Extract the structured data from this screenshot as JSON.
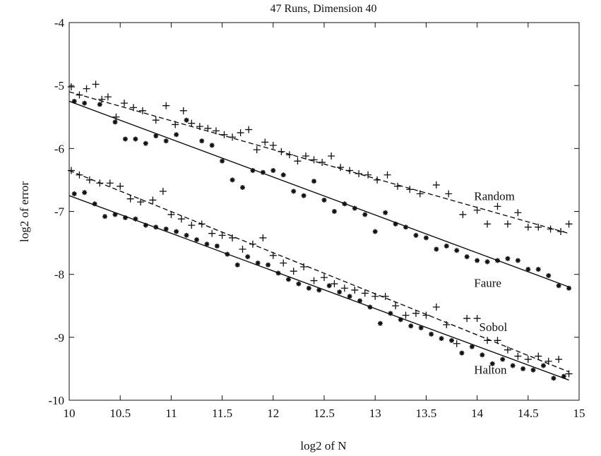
{
  "chart_data": {
    "type": "scatter",
    "title": "47 Runs, Dimension 40",
    "xlabel": "log2 of N",
    "ylabel": "log2 of error",
    "xlim": [
      10,
      15
    ],
    "ylim": [
      -10,
      -4
    ],
    "x_ticks": [
      10,
      10.5,
      11,
      11.5,
      12,
      12.5,
      13,
      13.5,
      14,
      14.5,
      15
    ],
    "x_tick_labels": [
      "10",
      "10.5",
      "11",
      "11.5",
      "12",
      "12.5",
      "13",
      "13.5",
      "14",
      "14.5",
      "15"
    ],
    "y_ticks": [
      -10,
      -9,
      -8,
      -7,
      -6,
      -5,
      -4
    ],
    "y_tick_labels": [
      "-10",
      "-9",
      "-8",
      "-7",
      "-6",
      "-5",
      "-4"
    ],
    "grid": false,
    "series": [
      {
        "name": "Random",
        "marker": "plus",
        "fit_line": "dashed",
        "fit": {
          "x": [
            10.0,
            14.9
          ],
          "y": [
            -5.1,
            -7.35
          ]
        },
        "points": [
          [
            10.02,
            -5.02
          ],
          [
            10.1,
            -5.15
          ],
          [
            10.17,
            -5.05
          ],
          [
            10.26,
            -4.98
          ],
          [
            10.32,
            -5.22
          ],
          [
            10.38,
            -5.18
          ],
          [
            10.46,
            -5.5
          ],
          [
            10.54,
            -5.28
          ],
          [
            10.63,
            -5.35
          ],
          [
            10.72,
            -5.4
          ],
          [
            10.85,
            -5.55
          ],
          [
            10.95,
            -5.32
          ],
          [
            11.04,
            -5.62
          ],
          [
            11.12,
            -5.4
          ],
          [
            11.2,
            -5.6
          ],
          [
            11.28,
            -5.65
          ],
          [
            11.36,
            -5.68
          ],
          [
            11.44,
            -5.72
          ],
          [
            11.52,
            -5.78
          ],
          [
            11.6,
            -5.82
          ],
          [
            11.68,
            -5.75
          ],
          [
            11.76,
            -5.7
          ],
          [
            11.84,
            -6.02
          ],
          [
            11.92,
            -5.9
          ],
          [
            12.0,
            -5.95
          ],
          [
            12.08,
            -6.05
          ],
          [
            12.16,
            -6.1
          ],
          [
            12.24,
            -6.2
          ],
          [
            12.32,
            -6.12
          ],
          [
            12.4,
            -6.18
          ],
          [
            12.48,
            -6.22
          ],
          [
            12.57,
            -6.12
          ],
          [
            12.66,
            -6.3
          ],
          [
            12.75,
            -6.35
          ],
          [
            12.84,
            -6.4
          ],
          [
            12.93,
            -6.42
          ],
          [
            13.02,
            -6.5
          ],
          [
            13.12,
            -6.42
          ],
          [
            13.22,
            -6.6
          ],
          [
            13.34,
            -6.65
          ],
          [
            13.44,
            -6.72
          ],
          [
            13.6,
            -6.58
          ],
          [
            13.72,
            -6.72
          ],
          [
            13.86,
            -7.05
          ],
          [
            14.0,
            -6.98
          ],
          [
            14.1,
            -7.2
          ],
          [
            14.2,
            -6.92
          ],
          [
            14.3,
            -7.2
          ],
          [
            14.4,
            -7.02
          ],
          [
            14.5,
            -7.25
          ],
          [
            14.6,
            -7.25
          ],
          [
            14.72,
            -7.28
          ],
          [
            14.82,
            -7.32
          ],
          [
            14.9,
            -7.2
          ]
        ]
      },
      {
        "name": "Faure",
        "marker": "star",
        "fit_line": "solid",
        "fit": {
          "x": [
            10.0,
            14.9
          ],
          "y": [
            -5.25,
            -8.2
          ]
        },
        "points": [
          [
            10.05,
            -5.25
          ],
          [
            10.15,
            -5.28
          ],
          [
            10.3,
            -5.3
          ],
          [
            10.45,
            -5.58
          ],
          [
            10.55,
            -5.85
          ],
          [
            10.65,
            -5.85
          ],
          [
            10.75,
            -5.92
          ],
          [
            10.85,
            -5.8
          ],
          [
            10.95,
            -5.88
          ],
          [
            11.05,
            -5.78
          ],
          [
            11.15,
            -5.55
          ],
          [
            11.3,
            -5.88
          ],
          [
            11.4,
            -5.95
          ],
          [
            11.5,
            -6.2
          ],
          [
            11.6,
            -6.5
          ],
          [
            11.7,
            -6.62
          ],
          [
            11.8,
            -6.35
          ],
          [
            11.9,
            -6.38
          ],
          [
            12.0,
            -6.35
          ],
          [
            12.1,
            -6.42
          ],
          [
            12.2,
            -6.68
          ],
          [
            12.3,
            -6.75
          ],
          [
            12.4,
            -6.52
          ],
          [
            12.5,
            -6.82
          ],
          [
            12.6,
            -7.0
          ],
          [
            12.7,
            -6.88
          ],
          [
            12.8,
            -6.95
          ],
          [
            12.9,
            -7.05
          ],
          [
            13.0,
            -7.32
          ],
          [
            13.1,
            -7.02
          ],
          [
            13.2,
            -7.2
          ],
          [
            13.3,
            -7.25
          ],
          [
            13.4,
            -7.38
          ],
          [
            13.5,
            -7.42
          ],
          [
            13.6,
            -7.6
          ],
          [
            13.7,
            -7.55
          ],
          [
            13.8,
            -7.62
          ],
          [
            13.9,
            -7.72
          ],
          [
            14.0,
            -7.78
          ],
          [
            14.1,
            -7.8
          ],
          [
            14.2,
            -7.78
          ],
          [
            14.3,
            -7.75
          ],
          [
            14.4,
            -7.78
          ],
          [
            14.5,
            -7.92
          ],
          [
            14.6,
            -7.92
          ],
          [
            14.7,
            -8.02
          ],
          [
            14.8,
            -8.18
          ],
          [
            14.9,
            -8.22
          ]
        ]
      },
      {
        "name": "Sobol",
        "marker": "plus",
        "fit_line": "dashed",
        "fit": {
          "x": [
            10.0,
            14.9
          ],
          "y": [
            -6.35,
            -9.55
          ]
        },
        "points": [
          [
            10.02,
            -6.35
          ],
          [
            10.1,
            -6.42
          ],
          [
            10.2,
            -6.5
          ],
          [
            10.3,
            -6.55
          ],
          [
            10.4,
            -6.55
          ],
          [
            10.5,
            -6.6
          ],
          [
            10.6,
            -6.8
          ],
          [
            10.7,
            -6.85
          ],
          [
            10.82,
            -6.82
          ],
          [
            10.92,
            -6.68
          ],
          [
            11.0,
            -7.05
          ],
          [
            11.1,
            -7.12
          ],
          [
            11.2,
            -7.22
          ],
          [
            11.3,
            -7.2
          ],
          [
            11.4,
            -7.35
          ],
          [
            11.5,
            -7.38
          ],
          [
            11.6,
            -7.42
          ],
          [
            11.7,
            -7.6
          ],
          [
            11.8,
            -7.52
          ],
          [
            11.9,
            -7.42
          ],
          [
            12.0,
            -7.7
          ],
          [
            12.1,
            -7.82
          ],
          [
            12.2,
            -7.95
          ],
          [
            12.3,
            -7.88
          ],
          [
            12.4,
            -8.1
          ],
          [
            12.5,
            -8.05
          ],
          [
            12.6,
            -8.15
          ],
          [
            12.7,
            -8.22
          ],
          [
            12.8,
            -8.25
          ],
          [
            12.9,
            -8.3
          ],
          [
            13.0,
            -8.35
          ],
          [
            13.1,
            -8.35
          ],
          [
            13.2,
            -8.5
          ],
          [
            13.3,
            -8.65
          ],
          [
            13.4,
            -8.62
          ],
          [
            13.5,
            -8.65
          ],
          [
            13.6,
            -8.52
          ],
          [
            13.7,
            -8.8
          ],
          [
            13.8,
            -9.1
          ],
          [
            13.9,
            -8.7
          ],
          [
            14.0,
            -8.7
          ],
          [
            14.1,
            -9.05
          ],
          [
            14.2,
            -9.05
          ],
          [
            14.3,
            -9.2
          ],
          [
            14.4,
            -9.3
          ],
          [
            14.5,
            -9.35
          ],
          [
            14.6,
            -9.3
          ],
          [
            14.7,
            -9.38
          ],
          [
            14.8,
            -9.35
          ],
          [
            14.9,
            -9.58
          ]
        ]
      },
      {
        "name": "Halton",
        "marker": "star",
        "fit_line": "solid",
        "fit": {
          "x": [
            10.0,
            14.9
          ],
          "y": [
            -6.75,
            -9.68
          ]
        },
        "points": [
          [
            10.05,
            -6.72
          ],
          [
            10.15,
            -6.7
          ],
          [
            10.25,
            -6.88
          ],
          [
            10.35,
            -7.08
          ],
          [
            10.45,
            -7.05
          ],
          [
            10.55,
            -7.1
          ],
          [
            10.65,
            -7.12
          ],
          [
            10.75,
            -7.22
          ],
          [
            10.85,
            -7.25
          ],
          [
            10.95,
            -7.28
          ],
          [
            11.05,
            -7.32
          ],
          [
            11.15,
            -7.38
          ],
          [
            11.25,
            -7.45
          ],
          [
            11.35,
            -7.52
          ],
          [
            11.45,
            -7.55
          ],
          [
            11.55,
            -7.68
          ],
          [
            11.65,
            -7.85
          ],
          [
            11.75,
            -7.72
          ],
          [
            11.85,
            -7.82
          ],
          [
            11.95,
            -7.85
          ],
          [
            12.05,
            -7.98
          ],
          [
            12.15,
            -8.08
          ],
          [
            12.25,
            -8.15
          ],
          [
            12.35,
            -8.22
          ],
          [
            12.45,
            -8.25
          ],
          [
            12.55,
            -8.18
          ],
          [
            12.65,
            -8.28
          ],
          [
            12.75,
            -8.35
          ],
          [
            12.85,
            -8.42
          ],
          [
            12.95,
            -8.52
          ],
          [
            13.05,
            -8.78
          ],
          [
            13.15,
            -8.62
          ],
          [
            13.25,
            -8.72
          ],
          [
            13.35,
            -8.82
          ],
          [
            13.45,
            -8.85
          ],
          [
            13.55,
            -8.95
          ],
          [
            13.65,
            -9.02
          ],
          [
            13.75,
            -9.05
          ],
          [
            13.85,
            -9.25
          ],
          [
            13.95,
            -9.15
          ],
          [
            14.05,
            -9.28
          ],
          [
            14.15,
            -9.42
          ],
          [
            14.25,
            -9.35
          ],
          [
            14.35,
            -9.45
          ],
          [
            14.45,
            -9.5
          ],
          [
            14.55,
            -9.52
          ],
          [
            14.65,
            -9.45
          ],
          [
            14.75,
            -9.65
          ],
          [
            14.85,
            -9.62
          ]
        ]
      }
    ],
    "series_labels": [
      {
        "text": "Random",
        "x": 13.97,
        "y": -6.82
      },
      {
        "text": "Faure",
        "x": 13.97,
        "y": -8.2
      },
      {
        "text": "Sobol",
        "x": 14.02,
        "y": -8.9
      },
      {
        "text": "Halton",
        "x": 13.97,
        "y": -9.58
      }
    ]
  }
}
